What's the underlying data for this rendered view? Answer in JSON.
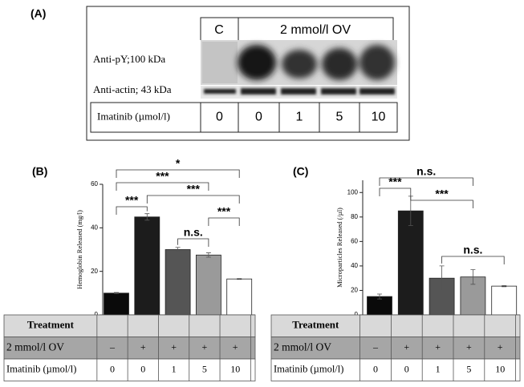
{
  "panel_a": {
    "label": "(A)",
    "header": [
      "C",
      "2 mmol/l OV"
    ],
    "blots": [
      "Anti-pY;100 kDa",
      "Anti-actin; 43 kDa"
    ],
    "treatment": {
      "label": "Imatinib (µmol/l)",
      "values": [
        0,
        0,
        1,
        5,
        10
      ]
    }
  },
  "chart_data": [
    {
      "type": "bar",
      "panel": "(B)",
      "y_label": "Hemoglobin Released (mg/l)",
      "ylim": [
        0,
        60
      ],
      "yticks": [
        0,
        20,
        40,
        60
      ],
      "values": [
        10,
        45,
        30,
        27.5,
        16.5
      ],
      "errors": [
        0.3,
        1.5,
        1,
        1,
        0.2
      ],
      "colors": [
        "#0a0a0a",
        "#1c1c1c",
        "#555555",
        "#9a9a9a",
        "#ffffff"
      ],
      "annotations": [
        "*",
        "***",
        "***",
        "***",
        "***",
        "n.s."
      ],
      "table": {
        "header": "Treatment",
        "rows": [
          {
            "label": "2 mmol/l OV",
            "cells": [
              "–",
              "+",
              "+",
              "+",
              "+"
            ]
          },
          {
            "label": "Imatinib (µmol/l)",
            "cells": [
              0,
              0,
              1,
              5,
              10
            ]
          }
        ]
      }
    },
    {
      "type": "bar",
      "panel": "(C)",
      "y_label": "Microparticles Released (/µl)",
      "ylim": [
        0,
        110
      ],
      "yticks": [
        0,
        20,
        40,
        60,
        80,
        100
      ],
      "values": [
        15,
        85,
        30,
        31,
        23.5
      ],
      "errors": [
        2,
        12,
        10,
        6,
        0.5
      ],
      "colors": [
        "#0a0a0a",
        "#1c1c1c",
        "#555555",
        "#9a9a9a",
        "#ffffff"
      ],
      "annotations": [
        "n.s.",
        "***",
        "***",
        "n.s."
      ],
      "table": {
        "header": "Treatment",
        "rows": [
          {
            "label": "2 mmol/l OV",
            "cells": [
              "–",
              "+",
              "+",
              "+",
              "+"
            ]
          },
          {
            "label": "Imatinib (µmol/l)",
            "cells": [
              0,
              0,
              1,
              5,
              10
            ]
          }
        ]
      }
    }
  ]
}
